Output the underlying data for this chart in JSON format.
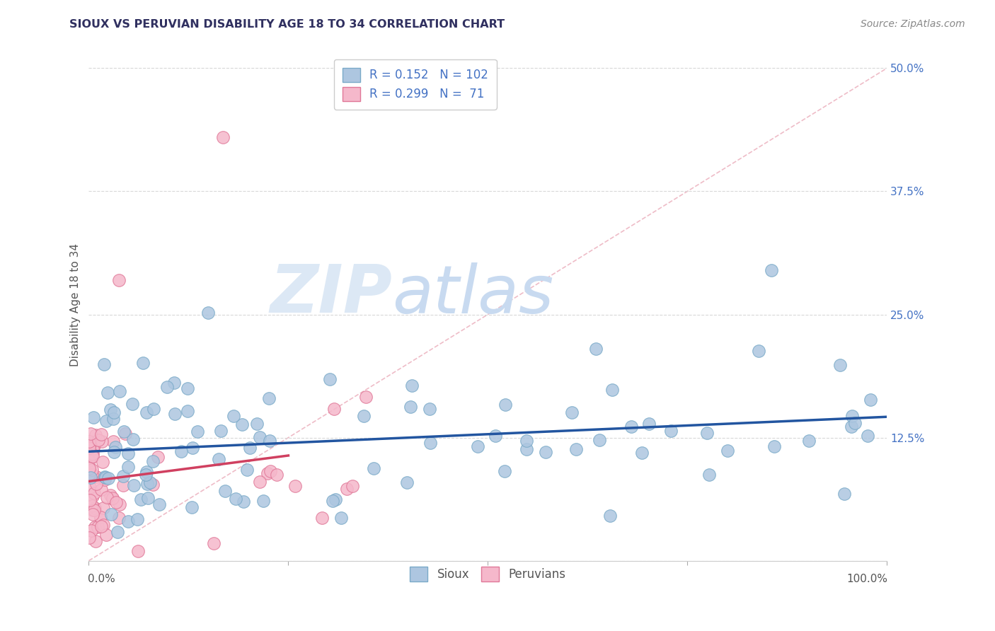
{
  "title": "SIOUX VS PERUVIAN DISABILITY AGE 18 TO 34 CORRELATION CHART",
  "source": "Source: ZipAtlas.com",
  "ylabel": "Disability Age 18 to 34",
  "xlim": [
    0.0,
    1.0
  ],
  "ylim": [
    0.0,
    0.52
  ],
  "sioux_R": 0.152,
  "sioux_N": 102,
  "peruvian_R": 0.299,
  "peruvian_N": 71,
  "sioux_color": "#adc6e0",
  "sioux_edge": "#7aaac8",
  "sioux_line_color": "#2255a0",
  "peruvian_color": "#f5b8cb",
  "peruvian_edge": "#e07898",
  "peruvian_line_color": "#d04060",
  "diagonal_color": "#e8a0b0",
  "background_color": "#ffffff",
  "watermark_zip": "ZIP",
  "watermark_atlas": "atlas",
  "watermark_color_zip": "#dce8f5",
  "watermark_color_atlas": "#c8daf0",
  "title_color": "#303060",
  "source_color": "#888888",
  "ytick_color": "#4472c4",
  "grid_color": "#d8d8d8",
  "legend_text_color": "#4472c4"
}
